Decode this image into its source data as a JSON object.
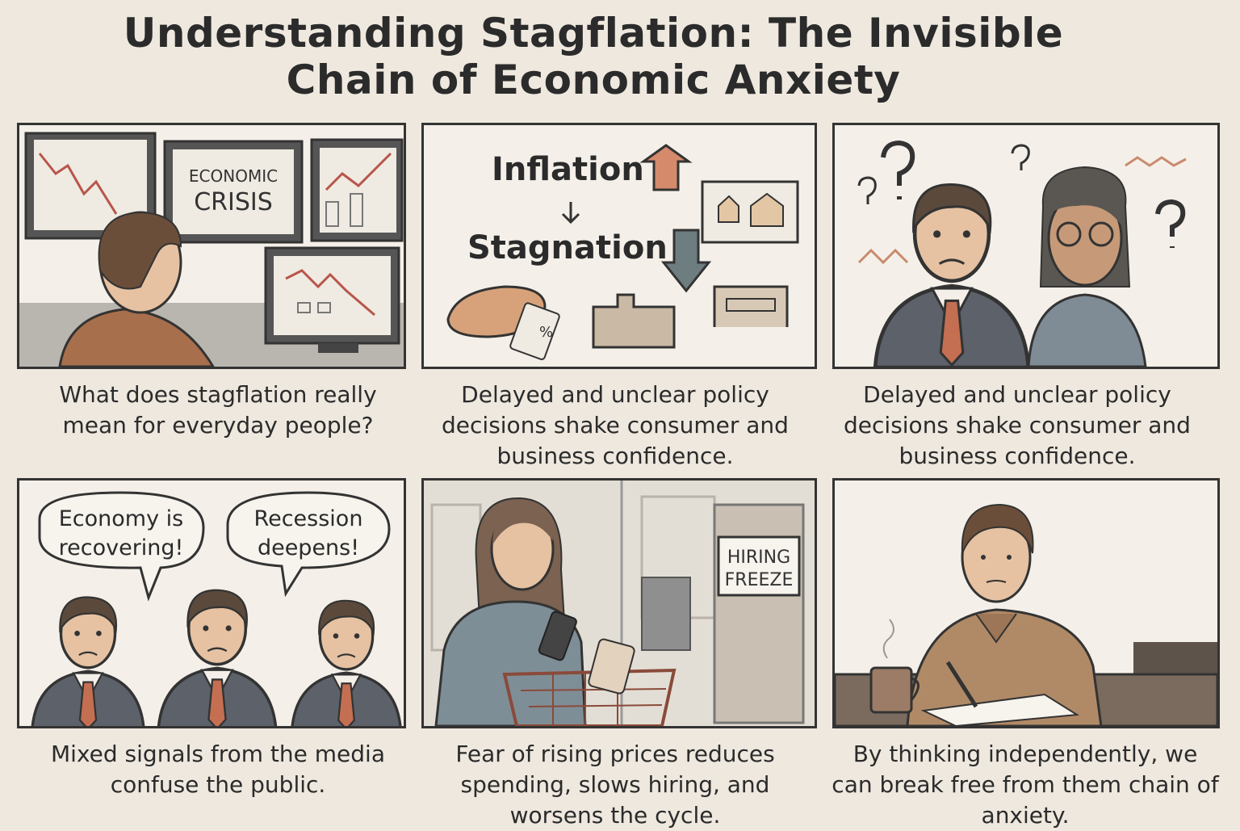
{
  "header": {
    "title_lines": [
      "Understanding Stagflation: The Invisible",
      "Chain of Economic Anxiety"
    ]
  },
  "panels": [
    {
      "scene_text": [
        "ECONOMIC",
        "CRISIS"
      ],
      "caption": "What does stagflation really mean for everyday people?"
    },
    {
      "scene_text": [
        "Inflation",
        "Stagnation",
        "%"
      ],
      "caption": "Delayed and unclear policy decisions shake consumer and business confidence."
    },
    {
      "caption": "Delayed and unclear policy decisions shake consumer and business confidence."
    },
    {
      "scene_text": [
        "Economy is",
        "recovering!",
        "Recession",
        "deepens!"
      ],
      "caption": "Mixed signals from the media confuse the public."
    },
    {
      "scene_text": [
        "HIRING",
        "FREEZE"
      ],
      "caption": "Fear of rising prices reduces spending, slows hiring, and worsens the cycle."
    },
    {
      "caption": "By thinking independently, we can break free from them chain of anxiety."
    }
  ]
}
